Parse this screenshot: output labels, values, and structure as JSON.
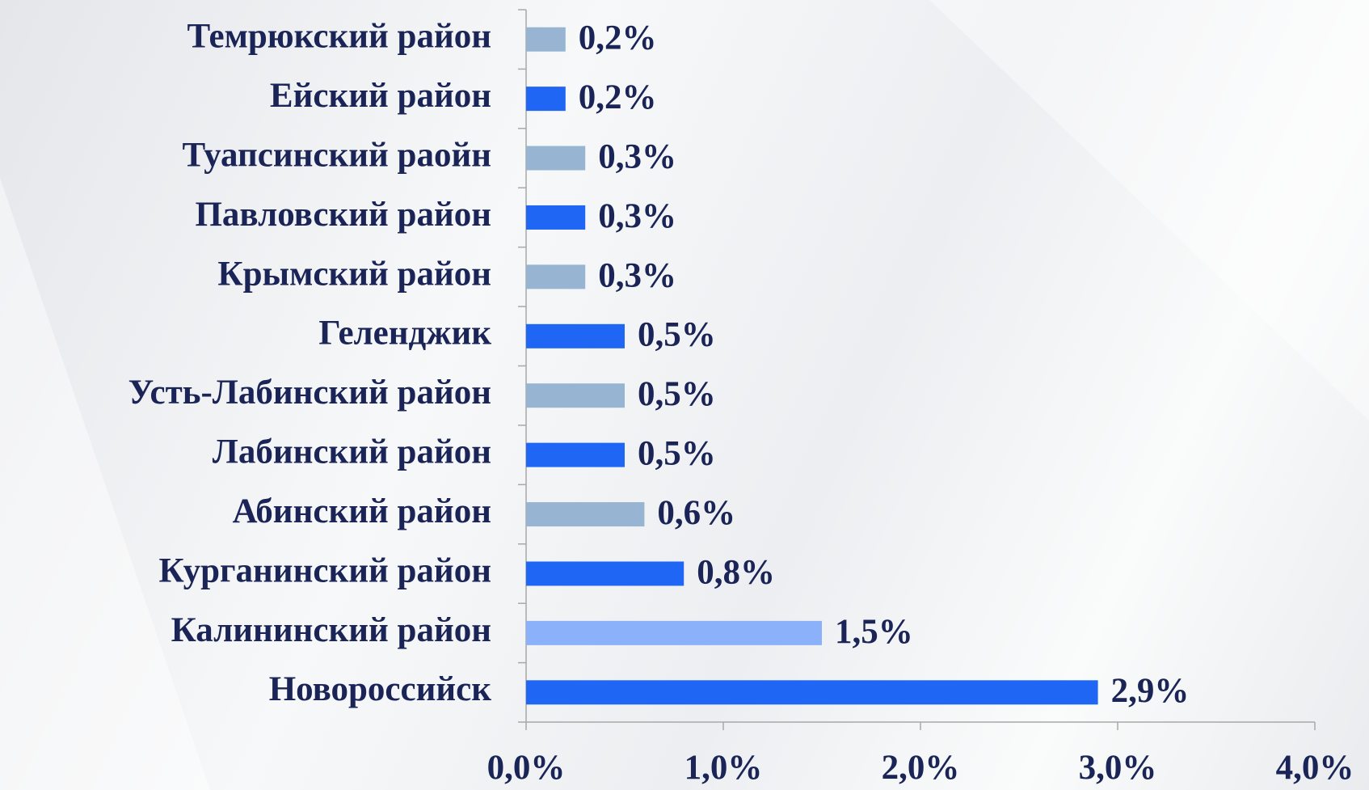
{
  "chart_data": {
    "type": "barh",
    "categories": [
      "Темрюкский район",
      "Ейский район",
      "Туапсинский раойн",
      "Павловский район",
      "Крымский район",
      "Геленджик",
      "Усть-Лабинский район",
      "Лабинский район",
      "Абинский район",
      "Курганинский район",
      "Калининский район",
      "Новороссийск"
    ],
    "values": [
      0.2,
      0.2,
      0.3,
      0.3,
      0.3,
      0.5,
      0.5,
      0.5,
      0.6,
      0.8,
      1.5,
      2.9
    ],
    "value_labels": [
      "0,2%",
      "0,2%",
      "0,3%",
      "0,3%",
      "0,3%",
      "0,5%",
      "0,5%",
      "0,5%",
      "0,6%",
      "0,8%",
      "1,5%",
      "2,9%"
    ],
    "colors": [
      "#97b5d3",
      "#1f66f5",
      "#97b5d3",
      "#1f66f5",
      "#97b5d3",
      "#1f66f5",
      "#97b5d3",
      "#1f66f5",
      "#97b5d3",
      "#1f66f5",
      "#8bb1fb",
      "#1f66f5"
    ],
    "xlim": [
      0,
      4
    ],
    "xticks": [
      {
        "value": 0,
        "label": "0,0%"
      },
      {
        "value": 1,
        "label": "1,0%"
      },
      {
        "value": 2,
        "label": "2,0%"
      },
      {
        "value": 3,
        "label": "3,0%"
      },
      {
        "value": 4,
        "label": "4,0%"
      }
    ]
  }
}
